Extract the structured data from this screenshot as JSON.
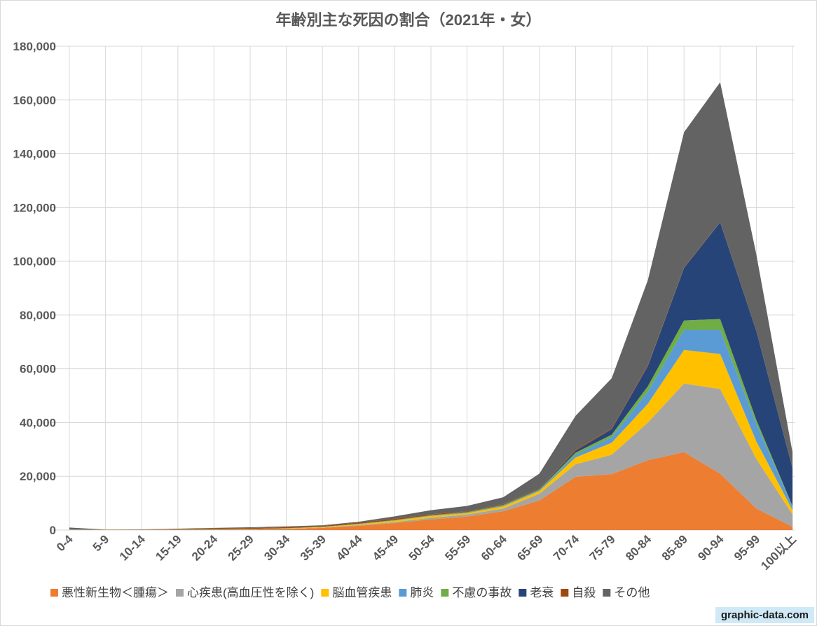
{
  "chart_data": {
    "type": "area",
    "stacked": true,
    "title": "年齢別主な死因の割合（2021年・女）",
    "xlabel": "",
    "ylabel": "",
    "ylim": [
      0,
      180000
    ],
    "yticks": [
      0,
      20000,
      40000,
      60000,
      80000,
      100000,
      120000,
      140000,
      160000,
      180000
    ],
    "ytick_labels": [
      "0",
      "20,000",
      "40,000",
      "60,000",
      "80,000",
      "100,000",
      "120,000",
      "140,000",
      "160,000",
      "180,000"
    ],
    "grid": true,
    "legend_position": "bottom",
    "categories": [
      "0-4",
      "5-9",
      "10-14",
      "15-19",
      "20-24",
      "25-29",
      "30-34",
      "35-39",
      "40-44",
      "45-49",
      "50-54",
      "55-59",
      "60-64",
      "65-69",
      "70-74",
      "75-79",
      "80-84",
      "85-89",
      "90-94",
      "95-99",
      "100以上"
    ],
    "series": [
      {
        "name": "悪性新生物＜腫瘍＞",
        "color": "#ED7D31",
        "values": [
          60,
          70,
          80,
          100,
          130,
          200,
          400,
          800,
          1600,
          2600,
          4000,
          5000,
          7000,
          11000,
          19800,
          20800,
          26000,
          29000,
          21000,
          8000,
          1200
        ]
      },
      {
        "name": "心疾患(高血圧性を除く)",
        "color": "#A5A5A5",
        "values": [
          100,
          10,
          10,
          20,
          40,
          60,
          100,
          150,
          250,
          400,
          600,
          800,
          1000,
          2500,
          4700,
          7200,
          14000,
          25500,
          31500,
          18500,
          4600
        ]
      },
      {
        "name": "脳血管疾患",
        "color": "#FFC000",
        "values": [
          10,
          5,
          5,
          10,
          20,
          40,
          80,
          150,
          300,
          500,
          600,
          500,
          800,
          1000,
          2500,
          4500,
          7000,
          12500,
          13000,
          6500,
          1700
        ]
      },
      {
        "name": "肺炎",
        "color": "#5B9BD5",
        "values": [
          20,
          5,
          5,
          10,
          10,
          20,
          30,
          30,
          50,
          50,
          100,
          150,
          200,
          300,
          1000,
          2000,
          4500,
          7500,
          9000,
          6500,
          1300
        ]
      },
      {
        "name": "不慮の事故",
        "color": "#70AD47",
        "values": [
          50,
          40,
          30,
          80,
          130,
          120,
          100,
          120,
          150,
          200,
          200,
          200,
          300,
          300,
          800,
          1000,
          2000,
          3500,
          4000,
          1500,
          200
        ]
      },
      {
        "name": "老衰",
        "color": "#264478",
        "values": [
          0,
          0,
          0,
          0,
          0,
          0,
          0,
          0,
          0,
          10,
          20,
          50,
          100,
          200,
          700,
          2000,
          7500,
          19500,
          36000,
          33000,
          14000
        ]
      },
      {
        "name": "自殺",
        "color": "#9E480E",
        "values": [
          0,
          0,
          40,
          200,
          300,
          350,
          350,
          350,
          400,
          440,
          380,
          300,
          300,
          200,
          400,
          300,
          300,
          200,
          100,
          30,
          0
        ]
      },
      {
        "name": "その他",
        "color": "#636363",
        "values": [
          700,
          70,
          100,
          100,
          200,
          250,
          300,
          200,
          350,
          900,
          1500,
          2000,
          2500,
          5500,
          12600,
          18700,
          31700,
          50300,
          52000,
          28500,
          6000
        ]
      }
    ]
  },
  "watermark": "graphic-data.com"
}
